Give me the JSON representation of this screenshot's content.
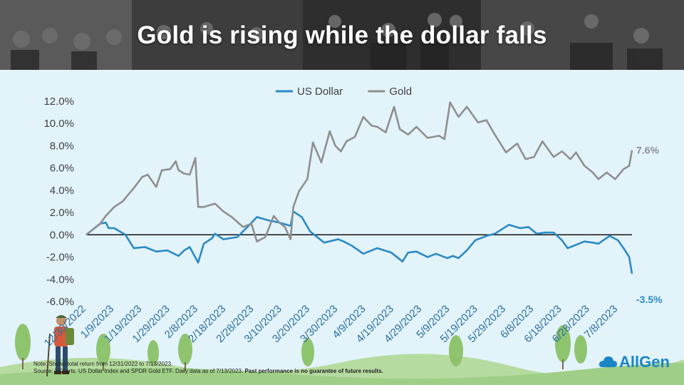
{
  "banner": {
    "title": "Gold is rising while the dollar falls"
  },
  "colors": {
    "usd": "#2a8ac4",
    "gold": "#8f8f8f",
    "zero_line": "#000000",
    "background": "#e3f3fa"
  },
  "logo": {
    "text": "AllGen",
    "icon": "allgen-cloud-icon"
  },
  "note": {
    "line1": "Note: Shows total return from 12/31/2022 to 7/13/2023.",
    "line2": "Source: YCharts. US Dollar Index and SPDR Gold ETF. Daily data as of 7/13/2023.",
    "disclaimer": "Past performance is no guarantee of future results."
  },
  "chart_data": {
    "type": "line",
    "legend_position": "top",
    "grid": false,
    "ylim": [
      -6,
      12
    ],
    "y_ticks": [
      "12.0%",
      "10.0%",
      "8.0%",
      "6.0%",
      "4.0%",
      "2.0%",
      "0.0%",
      "-2.0%",
      "-4.0%",
      "-6.0%"
    ],
    "x_ticks": [
      "12/30/2022",
      "1/9/2023",
      "1/19/2023",
      "1/29/2023",
      "2/8/2023",
      "2/18/2023",
      "2/28/2023",
      "3/10/2023",
      "3/20/2023",
      "3/30/2023",
      "4/9/2023",
      "4/19/2023",
      "4/29/2023",
      "5/9/2023",
      "5/19/2023",
      "5/29/2023",
      "6/8/2023",
      "6/18/2023",
      "6/28/2023",
      "7/8/2023"
    ],
    "x_range": [
      "2022-12-30",
      "2023-07-13"
    ],
    "end_labels": {
      "gold": "7.6%",
      "usd": "-3.5%"
    },
    "series": [
      {
        "name": "US Dollar",
        "key": "usd",
        "x": [
          "2022-12-30",
          "2023-01-04",
          "2023-01-06",
          "2023-01-07",
          "2023-01-09",
          "2023-01-13",
          "2023-01-16",
          "2023-01-20",
          "2023-01-24",
          "2023-01-28",
          "2023-02-01",
          "2023-02-03",
          "2023-02-05",
          "2023-02-08",
          "2023-02-10",
          "2023-02-13",
          "2023-02-14",
          "2023-02-17",
          "2023-02-22",
          "2023-02-26",
          "2023-03-01",
          "2023-03-05",
          "2023-03-09",
          "2023-03-13",
          "2023-03-14",
          "2023-03-17",
          "2023-03-20",
          "2023-03-25",
          "2023-03-30",
          "2023-04-01",
          "2023-04-04",
          "2023-04-08",
          "2023-04-13",
          "2023-04-18",
          "2023-04-22",
          "2023-04-24",
          "2023-04-27",
          "2023-05-01",
          "2023-05-04",
          "2023-05-08",
          "2023-05-10",
          "2023-05-12",
          "2023-05-15",
          "2023-05-18",
          "2023-05-22",
          "2023-05-25",
          "2023-05-30",
          "2023-06-03",
          "2023-06-06",
          "2023-06-09",
          "2023-06-12",
          "2023-06-15",
          "2023-06-18",
          "2023-06-20",
          "2023-06-23",
          "2023-06-26",
          "2023-06-29",
          "2023-07-01",
          "2023-07-05",
          "2023-07-08",
          "2023-07-10",
          "2023-07-12",
          "2023-07-13"
        ],
        "values": [
          0.0,
          1.0,
          1.1,
          0.6,
          0.6,
          0.0,
          -1.2,
          -1.1,
          -1.5,
          -1.4,
          -1.9,
          -1.4,
          -1.1,
          -2.5,
          -0.8,
          -0.3,
          0.1,
          -0.4,
          -0.2,
          0.8,
          1.6,
          1.3,
          1.1,
          0.8,
          2.1,
          1.6,
          0.3,
          -0.7,
          -0.4,
          -0.6,
          -1.0,
          -1.7,
          -1.2,
          -1.6,
          -2.4,
          -1.6,
          -1.5,
          -2.0,
          -1.7,
          -2.1,
          -1.9,
          -2.1,
          -1.4,
          -0.5,
          -0.1,
          0.1,
          0.9,
          0.6,
          0.7,
          0.1,
          0.2,
          0.2,
          -0.5,
          -1.2,
          -0.9,
          -0.6,
          -0.7,
          -0.8,
          -0.1,
          -0.5,
          -1.2,
          -2.0,
          -3.5
        ]
      },
      {
        "name": "Gold",
        "key": "gold",
        "x": [
          "2022-12-30",
          "2023-01-04",
          "2023-01-06",
          "2023-01-09",
          "2023-01-12",
          "2023-01-16",
          "2023-01-19",
          "2023-01-21",
          "2023-01-24",
          "2023-01-26",
          "2023-01-29",
          "2023-01-31",
          "2023-02-01",
          "2023-02-03",
          "2023-02-05",
          "2023-02-07",
          "2023-02-08",
          "2023-02-10",
          "2023-02-14",
          "2023-02-17",
          "2023-02-20",
          "2023-02-24",
          "2023-02-27",
          "2023-03-01",
          "2023-03-04",
          "2023-03-07",
          "2023-03-09",
          "2023-03-11",
          "2023-03-13",
          "2023-03-14",
          "2023-03-16",
          "2023-03-19",
          "2023-03-21",
          "2023-03-24",
          "2023-03-27",
          "2023-03-29",
          "2023-03-31",
          "2023-04-02",
          "2023-04-05",
          "2023-04-08",
          "2023-04-11",
          "2023-04-13",
          "2023-04-16",
          "2023-04-19",
          "2023-04-21",
          "2023-04-24",
          "2023-04-27",
          "2023-05-01",
          "2023-05-05",
          "2023-05-07",
          "2023-05-09",
          "2023-05-12",
          "2023-05-15",
          "2023-05-19",
          "2023-05-22",
          "2023-05-25",
          "2023-05-29",
          "2023-06-02",
          "2023-06-05",
          "2023-06-08",
          "2023-06-11",
          "2023-06-15",
          "2023-06-18",
          "2023-06-21",
          "2023-06-23",
          "2023-06-26",
          "2023-06-29",
          "2023-07-01",
          "2023-07-04",
          "2023-07-07",
          "2023-07-10",
          "2023-07-12",
          "2023-07-13"
        ],
        "values": [
          0.0,
          1.0,
          1.7,
          2.5,
          3.0,
          4.2,
          5.2,
          5.4,
          4.3,
          5.8,
          5.9,
          6.6,
          5.8,
          5.5,
          5.4,
          6.9,
          2.5,
          2.5,
          2.8,
          2.1,
          1.6,
          0.7,
          1.0,
          -0.6,
          -0.2,
          1.7,
          1.1,
          0.7,
          -0.4,
          2.5,
          3.9,
          5.0,
          8.3,
          6.5,
          9.3,
          8.0,
          7.5,
          8.4,
          8.8,
          10.6,
          9.8,
          9.7,
          9.2,
          11.5,
          9.5,
          9.0,
          9.7,
          8.7,
          8.9,
          8.6,
          11.9,
          10.6,
          11.5,
          10.1,
          10.3,
          9.0,
          7.4,
          8.2,
          6.8,
          7.0,
          8.4,
          7.0,
          7.5,
          6.8,
          7.4,
          6.2,
          5.6,
          5.0,
          5.6,
          5.0,
          5.9,
          6.2,
          7.6
        ]
      }
    ]
  }
}
